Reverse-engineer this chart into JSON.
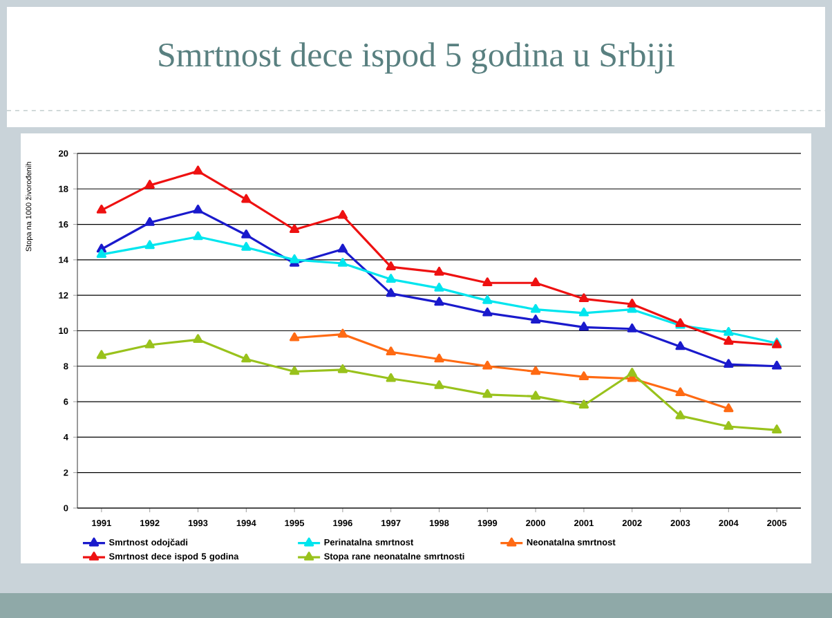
{
  "chart_data": {
    "type": "line",
    "title": "Smrtnost dece ispod 5 godina u Srbiji",
    "ylabel": "Stopa na 1000 živorođenih",
    "categories": [
      "1991",
      "1992",
      "1993",
      "1994",
      "1995",
      "1996",
      "1997",
      "1998",
      "1999",
      "2000",
      "2001",
      "2002",
      "2003",
      "2004",
      "2005"
    ],
    "series": [
      {
        "name": "Smrtnost odojčadi",
        "color": "#1a1acc",
        "values": [
          14.6,
          16.1,
          16.8,
          15.4,
          13.8,
          14.6,
          12.1,
          11.6,
          11.0,
          10.6,
          10.2,
          10.1,
          9.1,
          8.1,
          8.0
        ]
      },
      {
        "name": "Perinatalna smrtnost",
        "color": "#00e5ee",
        "values": [
          14.3,
          14.8,
          15.3,
          14.7,
          14.0,
          13.8,
          12.9,
          12.4,
          11.7,
          11.2,
          11.0,
          11.2,
          10.3,
          9.9,
          9.3
        ]
      },
      {
        "name": "Neonatalna smrtnost",
        "color": "#ff6a13",
        "values": [
          null,
          null,
          null,
          null,
          9.6,
          9.8,
          8.8,
          8.4,
          8.0,
          7.7,
          7.4,
          7.3,
          6.5,
          5.6,
          null
        ]
      },
      {
        "name": "Smrtnost dece ispod 5 godina",
        "color": "#ee1111",
        "values": [
          16.8,
          18.2,
          19.0,
          17.4,
          15.7,
          16.5,
          13.6,
          13.3,
          12.7,
          12.7,
          11.8,
          11.5,
          10.4,
          9.4,
          9.2
        ]
      },
      {
        "name": "Stopa rane neonatalne smrtnosti",
        "color": "#99c21c",
        "values": [
          8.6,
          9.2,
          9.5,
          8.4,
          7.7,
          7.8,
          7.3,
          6.9,
          6.4,
          6.3,
          5.8,
          7.6,
          5.2,
          4.6,
          4.4
        ]
      }
    ],
    "ylim": [
      0,
      20
    ],
    "yticks": [
      0,
      2,
      4,
      6,
      8,
      10,
      12,
      14,
      16,
      18,
      20
    ],
    "grid": "y",
    "legend": "bottom",
    "marker": "triangle"
  }
}
